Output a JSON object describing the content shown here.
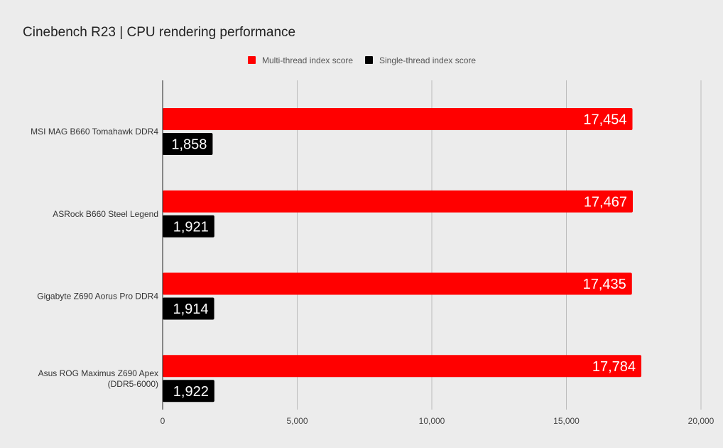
{
  "chart_data": {
    "type": "bar",
    "orientation": "horizontal",
    "title": "Cinebench R23 | CPU rendering performance",
    "categories": [
      [
        "MSI MAG B660 Tomahawk DDR4"
      ],
      [
        "ASRock B660 Steel Legend"
      ],
      [
        "Gigabyte Z690 Aorus Pro DDR4"
      ],
      [
        "Asus ROG Maximus Z690 Apex",
        "(DDR5-6000)"
      ]
    ],
    "series": [
      {
        "name": "Multi-thread index score",
        "color": "#ff0000",
        "values": [
          17454,
          17467,
          17435,
          17784
        ]
      },
      {
        "name": "Single-thread index score",
        "color": "#000000",
        "values": [
          1858,
          1921,
          1914,
          1922
        ]
      }
    ],
    "xlim": [
      0,
      20000
    ],
    "xticks": [
      0,
      5000,
      10000,
      15000,
      20000
    ],
    "xtick_labels": [
      "0",
      "5,000",
      "10,000",
      "15,000",
      "20,000"
    ],
    "grid": "vertical",
    "legend_position": "top-center",
    "data_labels": true
  }
}
